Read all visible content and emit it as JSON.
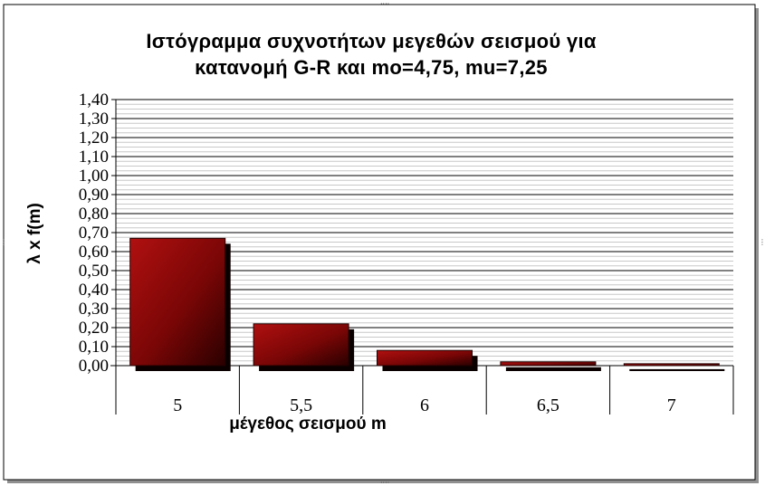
{
  "chart_data": {
    "type": "bar",
    "title_lines": [
      "Ιστόγραμμα συχνοτήτων μεγεθών σεισμού για",
      "κατανομή G-R και mo=4,75, mu=7,25"
    ],
    "categories": [
      "5",
      "5,5",
      "6",
      "6,5",
      "7"
    ],
    "values": [
      0.67,
      0.22,
      0.08,
      0.02,
      0.01
    ],
    "xlabel": "μέγεθος σεισμού m",
    "ylabel": "λ x f(m)",
    "ylim": [
      0,
      1.4
    ],
    "yticks": [
      "0,00",
      "0,10",
      "0,20",
      "0,30",
      "0,40",
      "0,50",
      "0,60",
      "0,70",
      "0,80",
      "0,90",
      "1,00",
      "1,10",
      "1,20",
      "1,30",
      "1,40"
    ],
    "grid": true,
    "legend": "none",
    "bar_color": "#8b0000"
  }
}
